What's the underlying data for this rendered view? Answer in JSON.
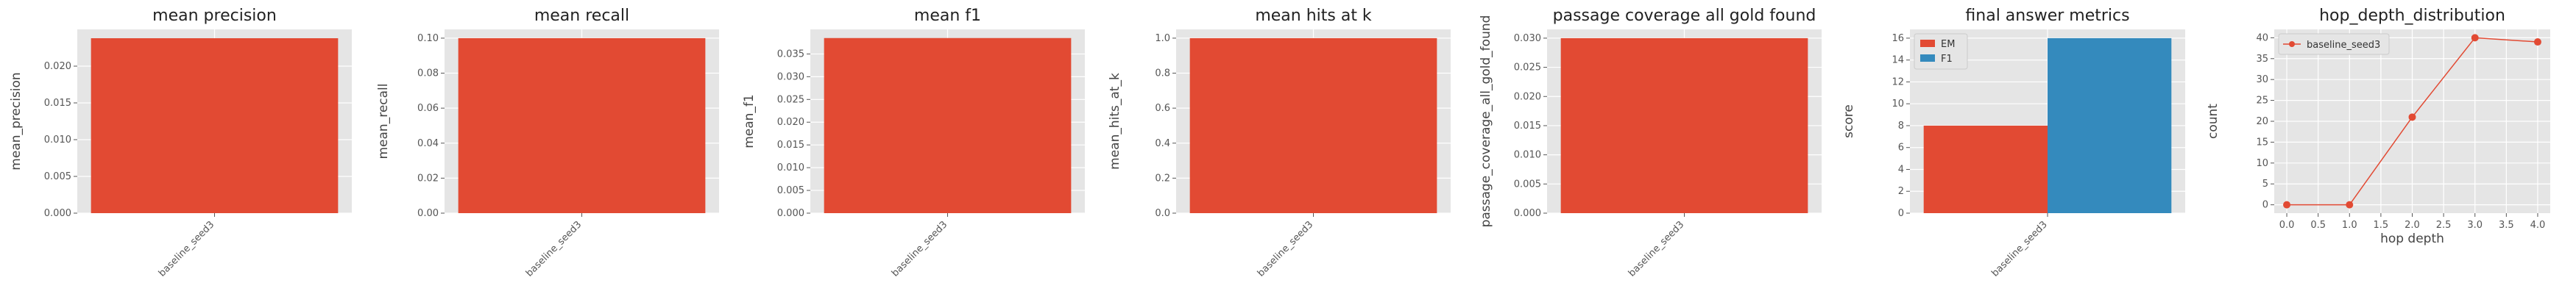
{
  "chart_data": [
    {
      "type": "bar",
      "title": "mean precision",
      "ylabel": "mean_precision",
      "categories": [
        "baseline_seed3"
      ],
      "values": [
        0.0238
      ],
      "ylim": [
        0,
        0.025
      ],
      "yticks": [
        "0.000",
        "0.005",
        "0.010",
        "0.015",
        "0.020"
      ],
      "color": "#E24A33",
      "grid": true
    },
    {
      "type": "bar",
      "title": "mean recall",
      "ylabel": "mean_recall",
      "categories": [
        "baseline_seed3"
      ],
      "values": [
        0.1
      ],
      "ylim": [
        0,
        0.105
      ],
      "yticks": [
        "0.00",
        "0.02",
        "0.04",
        "0.06",
        "0.08",
        "0.10"
      ],
      "color": "#E24A33",
      "grid": true
    },
    {
      "type": "bar",
      "title": "mean f1",
      "ylabel": "mean_f1",
      "categories": [
        "baseline_seed3"
      ],
      "values": [
        0.0385
      ],
      "ylim": [
        0,
        0.0404
      ],
      "yticks": [
        "0.000",
        "0.005",
        "0.010",
        "0.015",
        "0.020",
        "0.025",
        "0.030",
        "0.035"
      ],
      "color": "#E24A33",
      "grid": true
    },
    {
      "type": "bar",
      "title": "mean hits at k",
      "ylabel": "mean_hits_at_k",
      "categories": [
        "baseline_seed3"
      ],
      "values": [
        1.0
      ],
      "ylim": [
        0,
        1.05
      ],
      "yticks": [
        "0.0",
        "0.2",
        "0.4",
        "0.6",
        "0.8",
        "1.0"
      ],
      "color": "#E24A33",
      "grid": true
    },
    {
      "type": "bar",
      "title": "passage coverage all gold found",
      "ylabel": "passage_coverage_all_gold_found",
      "categories": [
        "baseline_seed3"
      ],
      "values": [
        0.03
      ],
      "ylim": [
        0,
        0.0315
      ],
      "yticks": [
        "0.000",
        "0.005",
        "0.010",
        "0.015",
        "0.020",
        "0.025",
        "0.030"
      ],
      "color": "#E24A33",
      "grid": true
    },
    {
      "type": "bar",
      "title": "final answer metrics",
      "ylabel": "score",
      "categories": [
        "baseline_seed3"
      ],
      "series": [
        {
          "name": "EM",
          "values": [
            8
          ],
          "color": "#E24A33"
        },
        {
          "name": "F1",
          "values": [
            16
          ],
          "color": "#348ABD"
        }
      ],
      "ylim": [
        0,
        16.8
      ],
      "yticks": [
        "0",
        "2",
        "4",
        "6",
        "8",
        "10",
        "12",
        "14",
        "16"
      ],
      "legend": "top-left",
      "grid": true
    },
    {
      "type": "line",
      "title": "hop_depth_distribution",
      "xlabel": "hop depth",
      "ylabel": "count",
      "x": [
        0,
        1,
        2,
        3,
        4
      ],
      "series": [
        {
          "name": "baseline_seed3",
          "values": [
            0,
            0,
            21,
            40,
            39
          ],
          "color": "#E24A33"
        }
      ],
      "xlim": [
        -0.2,
        4.2
      ],
      "ylim": [
        -2,
        42
      ],
      "xticks": [
        "0.0",
        "0.5",
        "1.0",
        "1.5",
        "2.0",
        "2.5",
        "3.0",
        "3.5",
        "4.0"
      ],
      "yticks": [
        "0",
        "5",
        "10",
        "15",
        "20",
        "25",
        "30",
        "35",
        "40"
      ],
      "legend": "top-left",
      "grid": true
    }
  ]
}
